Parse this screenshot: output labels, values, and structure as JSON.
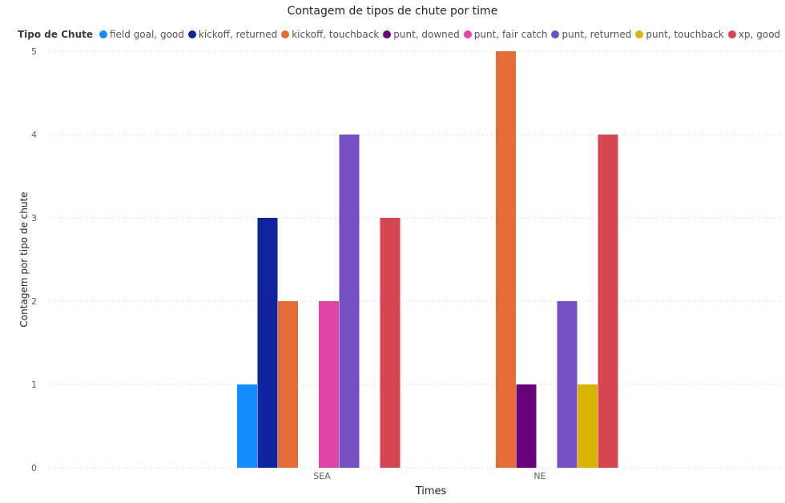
{
  "chart_data": {
    "type": "bar",
    "title": "Contagem de tipos de chute por time",
    "xlabel": "Times",
    "ylabel": "Contagem por tipo de chute",
    "legend_title": "Tipo de Chute",
    "legend_position": "top-left",
    "grid": true,
    "ylim": [
      0,
      5
    ],
    "yticks": [
      "0",
      "1",
      "2",
      "3",
      "4",
      "5"
    ],
    "categories": [
      "SEA",
      "NE"
    ],
    "series": [
      {
        "name": "field goal, good",
        "color": "#118DFF",
        "values": [
          1,
          0
        ]
      },
      {
        "name": "kickoff, returned",
        "color": "#12239E",
        "values": [
          3,
          0
        ]
      },
      {
        "name": "kickoff, touchback",
        "color": "#E66C37",
        "values": [
          2,
          5
        ]
      },
      {
        "name": "punt, downed",
        "color": "#6B007B",
        "values": [
          0,
          1
        ]
      },
      {
        "name": "punt, fair catch",
        "color": "#E044A7",
        "values": [
          2,
          0
        ]
      },
      {
        "name": "punt, returned",
        "color": "#744EC2",
        "values": [
          4,
          2
        ]
      },
      {
        "name": "punt, touchback",
        "color": "#D9B300",
        "values": [
          0,
          1
        ]
      },
      {
        "name": "xp, good",
        "color": "#D64550",
        "values": [
          3,
          4
        ]
      }
    ]
  }
}
